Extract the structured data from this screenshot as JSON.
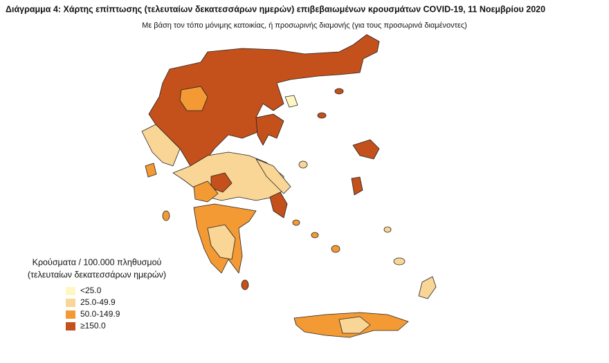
{
  "title": "Διάγραμμα 4: Χάρτης επίπτωσης (τελευταίων δεκατεσσάρων ημερών) επιβεβαιωμένων κρουσμάτων COVID-19, 11 Νοεμβρίου 2020",
  "subtitle": "Με βάση τον τόπο μόνιμης κατοικίας, ή προσωρινής διαμονής (για τους προσωρινά διαμένοντες)",
  "legend": {
    "title": [
      "Κρούσματα / 100.000 πληθυσμού",
      "(τελευταίων δεκατεσσάρων ημερών)"
    ],
    "items": [
      {
        "label": "<25.0",
        "color": "#fff7c2"
      },
      {
        "label": "25.0-49.9",
        "color": "#f9d596"
      },
      {
        "label": "50.0-149.9",
        "color": "#f39a34"
      },
      {
        "label": "≥150.0",
        "color": "#c4501b"
      }
    ]
  }
}
